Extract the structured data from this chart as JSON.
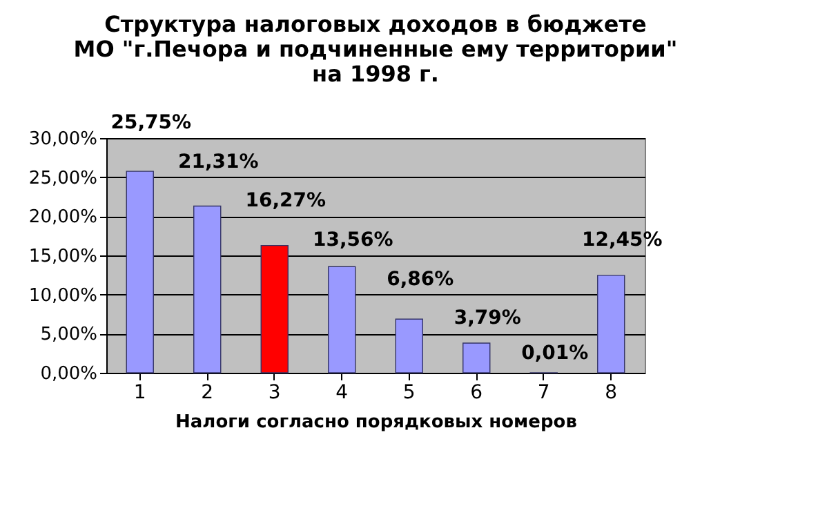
{
  "chart_data": {
    "type": "bar",
    "title": "Структура налоговых доходов в бюджете\nМО \"г.Печора и подчиненные ему территории\"\nна 1998 г.",
    "xlabel": "Налоги согласно порядковых номеров",
    "categories": [
      "1",
      "2",
      "3",
      "4",
      "5",
      "6",
      "7",
      "8"
    ],
    "values": [
      25.75,
      21.31,
      16.27,
      13.56,
      6.86,
      3.79,
      0.01,
      12.45
    ],
    "value_labels": [
      "25,75%",
      "21,31%",
      "16,27%",
      "13,56%",
      "6,86%",
      "3,79%",
      "0,01%",
      "12,45%"
    ],
    "colors": [
      "#9999ff",
      "#9999ff",
      "#ff0000",
      "#9999ff",
      "#9999ff",
      "#9999ff",
      "#9999ff",
      "#9999ff"
    ],
    "ylim": [
      0,
      30
    ],
    "yticks": [
      {
        "value": 0,
        "label": "0,00%"
      },
      {
        "value": 5,
        "label": "5,00%"
      },
      {
        "value": 10,
        "label": "10,00%"
      },
      {
        "value": 15,
        "label": "15,00%"
      },
      {
        "value": 20,
        "label": "20,00%"
      },
      {
        "value": 25,
        "label": "25,00%"
      },
      {
        "value": 30,
        "label": "30,00%"
      }
    ],
    "grid": true
  }
}
